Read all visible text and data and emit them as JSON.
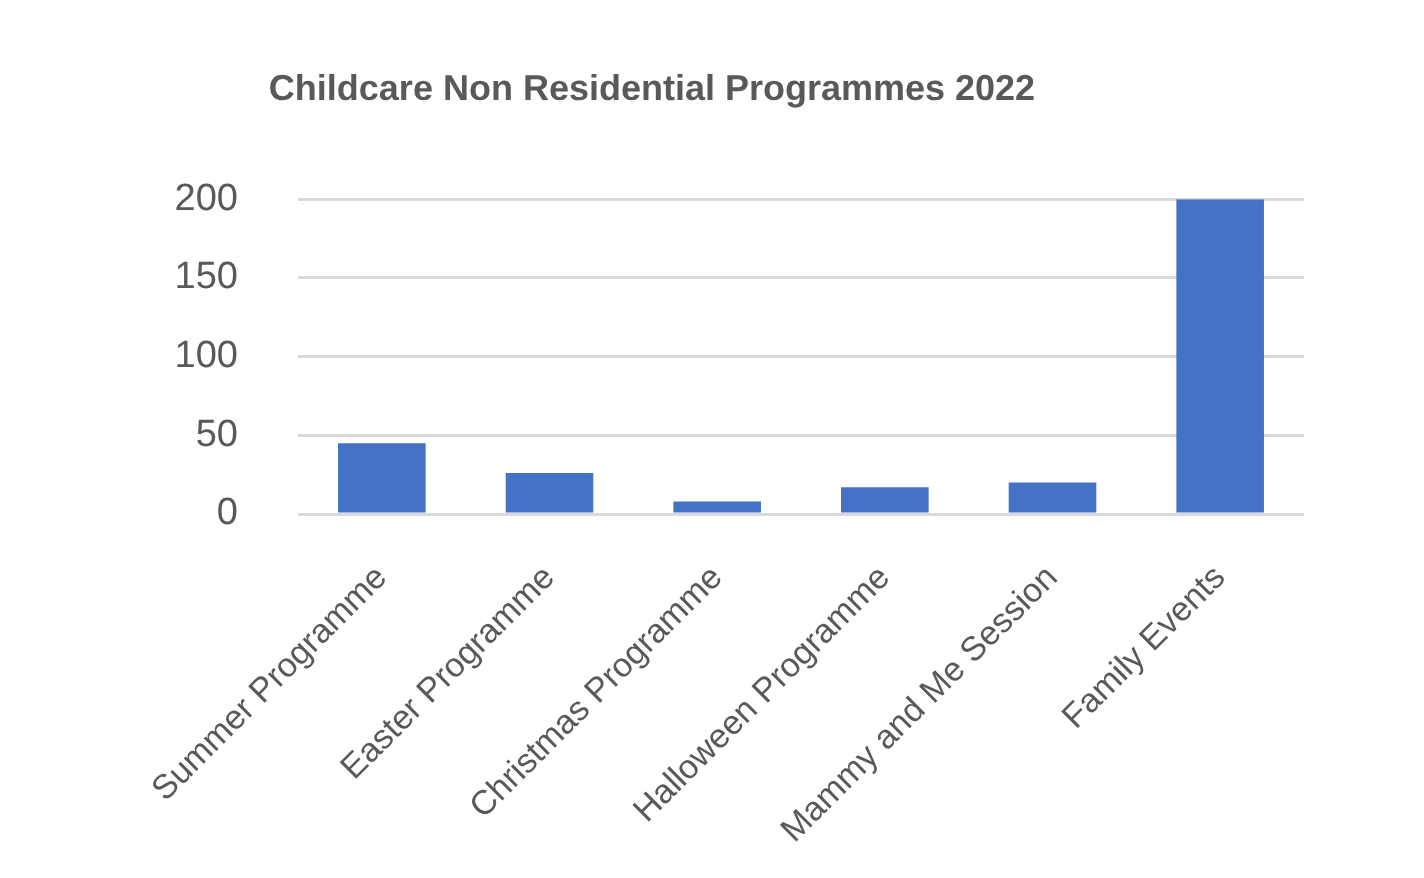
{
  "chart_data": {
    "type": "bar",
    "title": "Childcare Non Residential Programmes 2022",
    "categories": [
      "Summer Programme",
      "Easter Programme",
      "Christmas Programme",
      "Halloween Programme",
      "Mammy and Me Session",
      "Family Events"
    ],
    "values": [
      45,
      26,
      8,
      17,
      20,
      200
    ],
    "color": "#4472c4",
    "ylim": [
      0,
      200
    ],
    "yticks": [
      0,
      50,
      100,
      150,
      200
    ],
    "grid": "y"
  }
}
